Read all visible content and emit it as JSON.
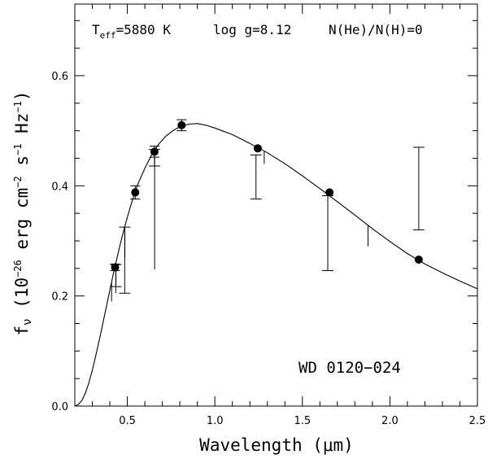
{
  "chart_data": {
    "type": "scatter",
    "xlabel": "Wavelength (μm)",
    "ylabel_main": "f",
    "ylabel_sub": "ν",
    "ylabel_rest": " (10",
    "ylabel_exp1": "−26",
    "ylabel_mid1": " erg cm",
    "ylabel_exp2": "−2",
    "ylabel_mid2": " s",
    "ylabel_exp3": "−1",
    "ylabel_mid3": " Hz",
    "ylabel_exp4": "−1",
    "ylabel_end": ")",
    "xlim": [
      0.2,
      2.5
    ],
    "ylim": [
      0.0,
      0.73
    ],
    "x_major_ticks": [
      0.5,
      1.0,
      1.5,
      2.0,
      2.5
    ],
    "x_tick_labels": [
      "0.5",
      "1.0",
      "1.5",
      "2.0",
      "2.5"
    ],
    "y_major_ticks": [
      0.0,
      0.2,
      0.4,
      0.6
    ],
    "y_tick_labels": [
      "0.0",
      "0.2",
      "0.4",
      "0.6"
    ],
    "annotation": {
      "teff_prefix": "T",
      "teff_sub": "eff",
      "teff_value": "=5880 K",
      "logg": "log g=8.12",
      "nhe": "N(He)/N(H)=0"
    },
    "object_label": "WD 0120−024",
    "photometry": [
      {
        "x": 0.43,
        "y": 0.252,
        "err": 0.006
      },
      {
        "x": 0.545,
        "y": 0.388,
        "err": 0.012
      },
      {
        "x": 0.655,
        "y": 0.462,
        "err": 0.01
      },
      {
        "x": 0.81,
        "y": 0.51,
        "err": 0.01
      },
      {
        "x": 1.245,
        "y": 0.468,
        "err": 0.004
      },
      {
        "x": 1.655,
        "y": 0.388,
        "err": 0.004
      },
      {
        "x": 2.165,
        "y": 0.266,
        "err": 0.004
      }
    ],
    "synthetic_fluxes": [
      {
        "x": 0.435,
        "y": 0.237,
        "err": 0.02
      },
      {
        "x": 0.485,
        "y": 0.265,
        "err": 0.06
      },
      {
        "x": 0.655,
        "y": 0.451,
        "err": 0.015
      },
      {
        "x": 1.235,
        "y": 0.416,
        "err": 0.04
      },
      {
        "x": 1.645,
        "y": 0.314,
        "err": 0.068
      },
      {
        "x": 2.165,
        "y": 0.395,
        "err": 0.075
      }
    ],
    "model_spectrum": {
      "x": [
        0.2,
        0.22,
        0.24,
        0.26,
        0.28,
        0.3,
        0.32,
        0.34,
        0.36,
        0.38,
        0.4,
        0.42,
        0.44,
        0.46,
        0.48,
        0.5,
        0.53,
        0.56,
        0.6,
        0.64,
        0.68,
        0.72,
        0.76,
        0.8,
        0.85,
        0.9,
        0.95,
        1.0,
        1.1,
        1.2,
        1.3,
        1.4,
        1.5,
        1.6,
        1.7,
        1.8,
        1.9,
        2.0,
        2.1,
        2.2,
        2.3,
        2.4,
        2.5
      ],
      "y": [
        0.0,
        0.003,
        0.01,
        0.023,
        0.042,
        0.065,
        0.092,
        0.12,
        0.15,
        0.18,
        0.21,
        0.24,
        0.268,
        0.295,
        0.32,
        0.343,
        0.375,
        0.403,
        0.432,
        0.457,
        0.476,
        0.49,
        0.5,
        0.507,
        0.512,
        0.513,
        0.51,
        0.505,
        0.493,
        0.477,
        0.46,
        0.44,
        0.418,
        0.395,
        0.371,
        0.347,
        0.322,
        0.299,
        0.277,
        0.258,
        0.242,
        0.227,
        0.213
      ]
    },
    "absorption_lines": [
      {
        "x": 0.41,
        "y_bottom": 0.19
      },
      {
        "x": 0.434,
        "y_bottom": 0.205
      },
      {
        "x": 0.486,
        "y_bottom": 0.27
      },
      {
        "x": 0.656,
        "y_bottom": 0.248
      },
      {
        "x": 1.282,
        "y_bottom": 0.44
      },
      {
        "x": 1.875,
        "y_bottom": 0.29
      }
    ]
  }
}
